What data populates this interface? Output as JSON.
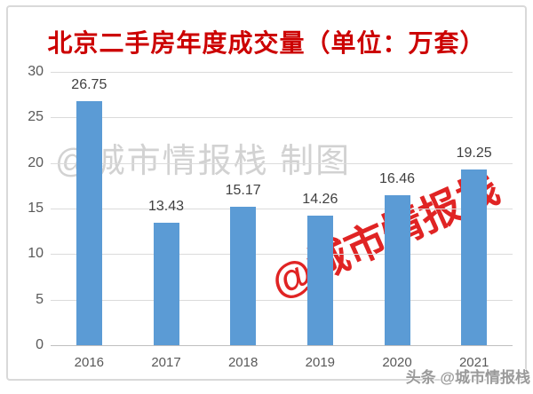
{
  "title": "北京二手房年度成交量（单位：万套）",
  "watermarks": {
    "gray": "@城市情报栈 制图",
    "red": "@城市情报栈",
    "toutiao": "头条 @城市情报栈"
  },
  "colors": {
    "bar": "#5B9BD5",
    "title": "#CC0000",
    "watermark_red": "#E02424",
    "watermark_gray": "#D2D2D2",
    "axis_text": "#595959",
    "data_label": "#404040",
    "gridline": "#DBDBDB",
    "axis_line": "#BFBFBF",
    "frame_border": "#D9D9D9",
    "toutiao_gray": "#9A9A9A"
  },
  "chart_data": {
    "type": "bar",
    "categories": [
      "2016",
      "2017",
      "2018",
      "2019",
      "2020",
      "2021"
    ],
    "values": [
      26.75,
      13.43,
      15.17,
      14.26,
      16.46,
      19.25
    ],
    "data_labels": [
      "26.75",
      "13.43",
      "15.17",
      "14.26",
      "16.46",
      "19.25"
    ],
    "title": "北京二手房年度成交量（单位：万套）",
    "xlabel": "",
    "ylabel": "",
    "ylim": [
      0,
      30
    ],
    "yticks": [
      0,
      5,
      10,
      15,
      20,
      25,
      30
    ],
    "grid": true,
    "legend": false
  }
}
